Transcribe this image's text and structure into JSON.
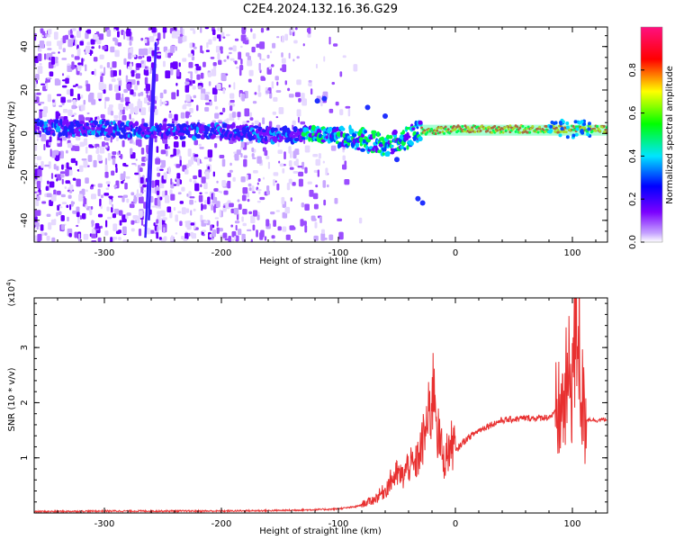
{
  "title": "C2E4.2024.132.16.36.G29",
  "chart_data": [
    {
      "type": "heatmap",
      "xlabel": "Height of straight line (km)",
      "ylabel": "Frequency (Hz)",
      "xlim": [
        -360,
        130
      ],
      "ylim": [
        -50,
        49
      ],
      "x_ticks": [
        -300,
        -200,
        -100,
        0,
        100
      ],
      "x_tick_labels": [
        "-300",
        "-200",
        "-100",
        "0",
        "100"
      ],
      "y_ticks": [
        -40,
        -20,
        0,
        20,
        40
      ],
      "y_tick_labels": [
        "-40",
        "-20",
        "0",
        "20",
        "40"
      ],
      "colorbar": {
        "label": "Normalized spectral amplitude",
        "range": [
          0,
          1
        ],
        "ticks": [
          0,
          0.2,
          0.4,
          0.6,
          0.8
        ],
        "tick_labels": [
          "0.0",
          "0.2",
          "0.4",
          "0.6",
          "0.8"
        ],
        "colormap": [
          "#ffffff",
          "#7b00ff",
          "#0000ff",
          "#00e5ff",
          "#00ff00",
          "#ffff00",
          "#ff0000",
          "#ff1080"
        ]
      },
      "ridge": [
        {
          "x": -360,
          "f": 3
        },
        {
          "x": -300,
          "f": 2
        },
        {
          "x": -250,
          "f": 1
        },
        {
          "x": -200,
          "f": 1
        },
        {
          "x": -150,
          "f": -1
        },
        {
          "x": -120,
          "f": 0
        },
        {
          "x": -100,
          "f": -1
        },
        {
          "x": -80,
          "f": -3
        },
        {
          "x": -60,
          "f": -5
        },
        {
          "x": -45,
          "f": -3
        },
        {
          "x": -30,
          "f": 1
        },
        {
          "x": -20,
          "f": 1
        },
        {
          "x": 0,
          "f": 2
        },
        {
          "x": 50,
          "f": 2
        },
        {
          "x": 100,
          "f": 2
        },
        {
          "x": 130,
          "f": 2
        }
      ],
      "noise_region_x": [
        -360,
        -100
      ],
      "grid": false
    },
    {
      "type": "line",
      "xlabel": "Height of straight line (km)",
      "ylabel": "SNR (10 * v/v)",
      "y_scale_label": "(x10",
      "y_scale_exp": "4",
      "y_scale_close": ")",
      "xlim": [
        -360,
        130
      ],
      "ylim": [
        0,
        3.9
      ],
      "x_ticks": [
        -300,
        -200,
        -100,
        0,
        100
      ],
      "x_tick_labels": [
        "-300",
        "-200",
        "-100",
        "0",
        "100"
      ],
      "y_ticks": [
        1,
        2,
        3
      ],
      "y_tick_labels": [
        "1",
        "2",
        "3"
      ],
      "color": "#e83030",
      "series": [
        {
          "x": [
            -360,
            -300,
            -200,
            -150,
            -110,
            -100,
            -85,
            -70,
            -60,
            -55,
            -50,
            -45,
            -40,
            -35,
            -30,
            -25,
            -20,
            -18,
            -15,
            -12,
            -10,
            -5,
            0,
            5,
            10,
            20,
            30,
            40,
            50,
            60,
            70,
            80,
            85,
            90,
            95,
            100,
            103,
            105,
            107,
            110,
            115,
            120,
            130
          ],
          "values": [
            0.01,
            0.02,
            0.02,
            0.03,
            0.05,
            0.06,
            0.1,
            0.2,
            0.35,
            0.5,
            0.6,
            0.55,
            0.75,
            0.7,
            0.95,
            1.3,
            1.7,
            2.1,
            1.2,
            1.0,
            0.8,
            1.0,
            1.1,
            1.25,
            1.35,
            1.5,
            1.6,
            1.68,
            1.7,
            1.72,
            1.72,
            1.74,
            1.8,
            1.8,
            2.2,
            2.6,
            3.2,
            3.9,
            2.4,
            1.7,
            1.7,
            1.68,
            1.7
          ]
        }
      ],
      "grid": false
    }
  ]
}
